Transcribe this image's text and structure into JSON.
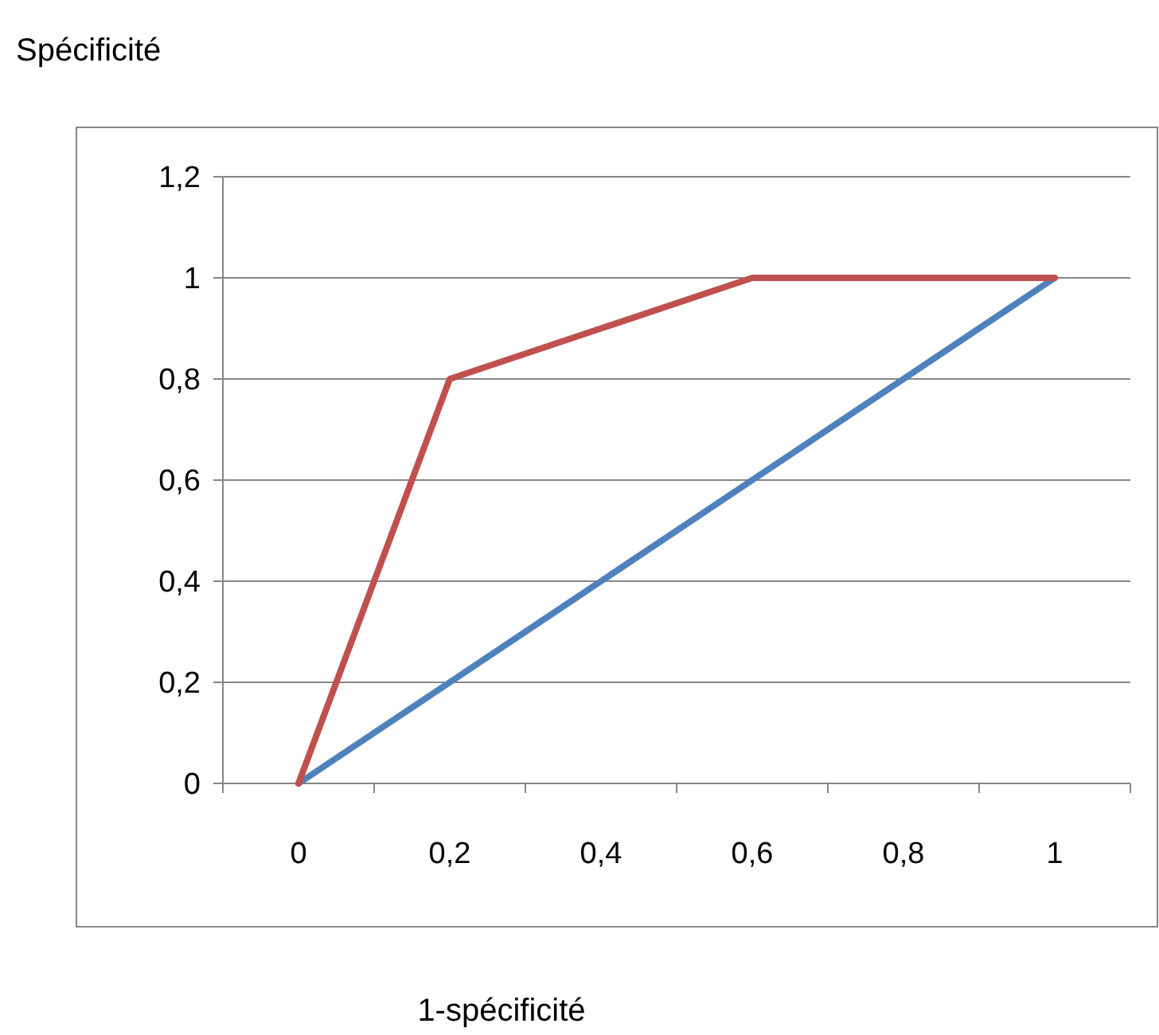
{
  "chart_data": {
    "type": "line",
    "ylabel": "Spécificité",
    "xlabel": "1-spécificité",
    "categories": [
      "0",
      "0,2",
      "0,4",
      "0,6",
      "0,8",
      "1"
    ],
    "series": [
      {
        "color": "#4f81bd",
        "values": [
          0,
          0.2,
          0.4,
          0.6,
          0.8,
          1
        ]
      },
      {
        "color": "#c0504d",
        "values": [
          0,
          0.8,
          0.9,
          1,
          1,
          1
        ]
      }
    ],
    "ylim": [
      0,
      1.2
    ],
    "yticks": [
      0,
      {
        "value": 0.2,
        "label": "0,2"
      },
      {
        "value": 0.4,
        "label": "0,4"
      },
      {
        "value": 0.6,
        "label": "0,6"
      },
      {
        "value": 0.8,
        "label": "0,8"
      },
      1,
      {
        "value": 1.2,
        "label": "1,2"
      }
    ],
    "grid": "y",
    "marker": "none",
    "line_style": "solid"
  }
}
